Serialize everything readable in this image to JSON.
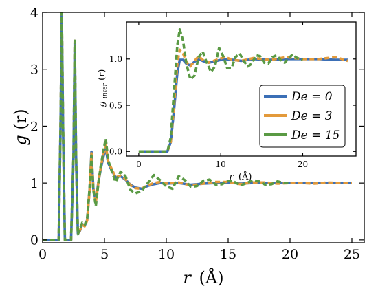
{
  "chart_data": [
    {
      "type": "line",
      "title": "",
      "xlabel_main": "r",
      "xlabel_unit": "(Å)",
      "ylabel_main": "g",
      "ylabel_arg": "(r)",
      "xlim": [
        0,
        26
      ],
      "ylim": [
        -0.05,
        4
      ],
      "xticks": [
        0,
        5,
        10,
        15,
        20,
        25
      ],
      "yticks": [
        0,
        1,
        2,
        3,
        4
      ],
      "xtick_labels": [
        "0",
        "5",
        "10",
        "15",
        "20",
        "25"
      ],
      "ytick_labels": [
        "0",
        "1",
        "2",
        "3",
        "4"
      ],
      "grid": false,
      "series": [
        {
          "name": "De = 0",
          "color": "#3b6fb6",
          "x": [
            0,
            1.3,
            1.45,
            1.55,
            1.65,
            1.8,
            2.3,
            2.5,
            2.6,
            2.7,
            2.85,
            3.0,
            3.2,
            3.4,
            3.6,
            3.8,
            3.95,
            4.1,
            4.3,
            4.5,
            4.7,
            4.9,
            5.1,
            5.3,
            5.6,
            5.9,
            6.3,
            6.7,
            7.1,
            7.5,
            8.0,
            8.5,
            9.0,
            9.5,
            10.0,
            11.0,
            12.0,
            13.0,
            14.0,
            15.0,
            16.0,
            17.0,
            18.0,
            19.0,
            20.0,
            21.0,
            22.0,
            23.0,
            24.0,
            25.0
          ],
          "y": [
            0,
            0,
            2.0,
            4.0,
            2.0,
            0,
            0,
            1.5,
            3.5,
            1.5,
            0.12,
            0.15,
            0.28,
            0.25,
            0.35,
            0.9,
            1.55,
            0.9,
            0.68,
            1.0,
            1.25,
            1.45,
            1.62,
            1.35,
            1.22,
            1.1,
            1.12,
            1.06,
            0.97,
            0.92,
            0.9,
            0.95,
            0.98,
            1.0,
            0.99,
            1.0,
            0.97,
            0.99,
            1.0,
            1.01,
            0.99,
            1.0,
            1.0,
            1.0,
            1.0,
            1.0,
            1.0,
            1.0,
            1.0,
            1.0
          ]
        },
        {
          "name": "De = 3",
          "color": "#e39a3b",
          "x": [
            0,
            1.3,
            1.45,
            1.55,
            1.65,
            1.8,
            2.3,
            2.5,
            2.6,
            2.7,
            2.85,
            3.0,
            3.2,
            3.4,
            3.6,
            3.8,
            3.95,
            4.1,
            4.3,
            4.5,
            4.7,
            4.9,
            5.1,
            5.3,
            5.6,
            5.9,
            6.3,
            6.7,
            7.1,
            7.5,
            8.0,
            8.5,
            9.0,
            9.5,
            10.0,
            11.0,
            12.0,
            13.0,
            14.0,
            15.0,
            16.0,
            17.0,
            18.0,
            19.0,
            20.0,
            21.0,
            22.0,
            23.0,
            24.0,
            25.0
          ],
          "y": [
            0,
            0,
            2.0,
            4.0,
            2.0,
            0,
            0,
            1.5,
            3.5,
            1.5,
            0.12,
            0.16,
            0.27,
            0.24,
            0.34,
            0.88,
            1.52,
            0.9,
            0.66,
            1.0,
            1.28,
            1.5,
            1.66,
            1.38,
            1.24,
            1.1,
            1.13,
            1.07,
            0.96,
            0.91,
            0.9,
            0.96,
            1.0,
            1.02,
            0.99,
            1.01,
            0.96,
            0.99,
            1.02,
            1.02,
            0.98,
            1.01,
            1.01,
            0.99,
            1.0,
            1.0,
            0.99,
            1.01,
            1.0,
            1.0
          ]
        },
        {
          "name": "De = 15",
          "color": "#5a9a44",
          "x": [
            0,
            1.3,
            1.45,
            1.55,
            1.65,
            1.8,
            2.3,
            2.5,
            2.6,
            2.7,
            2.85,
            3.0,
            3.2,
            3.4,
            3.6,
            3.8,
            3.95,
            4.1,
            4.3,
            4.5,
            4.7,
            4.9,
            5.1,
            5.3,
            5.6,
            5.9,
            6.3,
            6.7,
            7.1,
            7.5,
            8.0,
            8.5,
            9.0,
            9.5,
            10.0,
            10.5,
            11.0,
            11.5,
            12.0,
            12.5,
            13.0,
            13.5,
            14.0,
            14.5,
            15.0,
            15.5,
            16.0,
            16.5,
            17.0,
            17.5,
            18.0,
            18.5,
            19.0,
            19.5,
            20.0
          ],
          "y": [
            0,
            0,
            2.0,
            4.0,
            2.0,
            0,
            0,
            1.5,
            3.5,
            1.5,
            0.1,
            0.18,
            0.3,
            0.26,
            0.38,
            0.92,
            1.48,
            0.88,
            0.6,
            0.98,
            1.3,
            1.55,
            1.78,
            1.4,
            1.2,
            1.02,
            1.2,
            1.12,
            0.88,
            0.82,
            0.86,
            1.0,
            1.14,
            1.05,
            0.94,
            0.9,
            1.12,
            1.05,
            0.93,
            0.95,
            1.04,
            1.06,
            0.97,
            0.98,
            1.04,
            1.02,
            0.96,
            1.0,
            1.05,
            1.03,
            0.97,
            0.98,
            1.03,
            1.0,
            1.0
          ]
        }
      ]
    },
    {
      "type": "line",
      "title": "",
      "xlabel_main": "r",
      "xlabel_unit": "(Å)",
      "ylabel_main": "g",
      "ylabel_sub": "inter",
      "ylabel_arg": "(r)",
      "xlim": [
        -1.5,
        26.5
      ],
      "ylim": [
        -0.05,
        1.4
      ],
      "xticks": [
        0,
        10,
        20
      ],
      "yticks": [
        0.0,
        0.5,
        1.0
      ],
      "xtick_labels": [
        "0",
        "10",
        "20"
      ],
      "ytick_labels": [
        "0.0",
        "0.5",
        "1.0"
      ],
      "grid": false,
      "legend_position": "lower-right",
      "series": [
        {
          "name": "De = 0",
          "color": "#3b6fb6",
          "x": [
            0,
            3.5,
            3.9,
            4.3,
            4.7,
            5.0,
            5.4,
            5.8,
            6.3,
            6.8,
            7.3,
            7.8,
            8.5,
            9.5,
            10.5,
            11.5,
            12.5,
            14,
            16,
            18,
            20,
            22,
            24,
            25.5
          ],
          "y": [
            0,
            0,
            0.1,
            0.45,
            0.85,
            0.99,
            0.99,
            0.95,
            0.93,
            0.97,
            1.0,
            0.98,
            0.96,
            0.98,
            1.0,
            0.99,
            0.98,
            1.0,
            0.99,
            1.0,
            1.0,
            1.0,
            0.99,
            0.99
          ]
        },
        {
          "name": "De = 3",
          "color": "#e39a3b",
          "x": [
            0,
            3.5,
            3.9,
            4.3,
            4.7,
            5.0,
            5.4,
            5.8,
            6.3,
            6.8,
            7.3,
            7.8,
            8.5,
            9.5,
            10.5,
            11.5,
            12.5,
            14,
            16,
            18,
            20,
            22,
            24,
            25.5
          ],
          "y": [
            0,
            0,
            0.1,
            0.5,
            0.95,
            1.1,
            1.06,
            0.97,
            0.92,
            0.98,
            1.03,
            0.99,
            0.96,
            0.99,
            1.02,
            0.99,
            0.98,
            1.01,
            0.99,
            1.02,
            1.0,
            1.0,
            1.02,
            0.98
          ]
        },
        {
          "name": "De = 15",
          "color": "#5a9a44",
          "x": [
            0,
            3.5,
            3.9,
            4.3,
            4.7,
            5.0,
            5.4,
            5.8,
            6.3,
            6.8,
            7.3,
            7.8,
            8.3,
            8.8,
            9.3,
            9.8,
            10.3,
            10.8,
            11.3,
            11.8,
            12.3,
            12.8,
            13.3,
            13.8,
            14.3,
            14.8,
            15.3,
            15.8,
            16.3,
            16.8,
            17.3,
            17.8,
            18.3,
            18.8,
            19.3,
            20
          ],
          "y": [
            0,
            0,
            0.15,
            0.65,
            1.15,
            1.32,
            1.2,
            0.95,
            0.78,
            0.82,
            1.02,
            1.08,
            0.96,
            0.86,
            0.92,
            1.12,
            1.03,
            0.9,
            0.9,
            1.02,
            1.06,
            0.98,
            0.92,
            0.95,
            1.04,
            1.03,
            0.96,
            0.95,
            1.02,
            1.04,
            0.99,
            0.96,
            1.01,
            1.05,
            1.01,
            0.99
          ]
        }
      ]
    }
  ]
}
